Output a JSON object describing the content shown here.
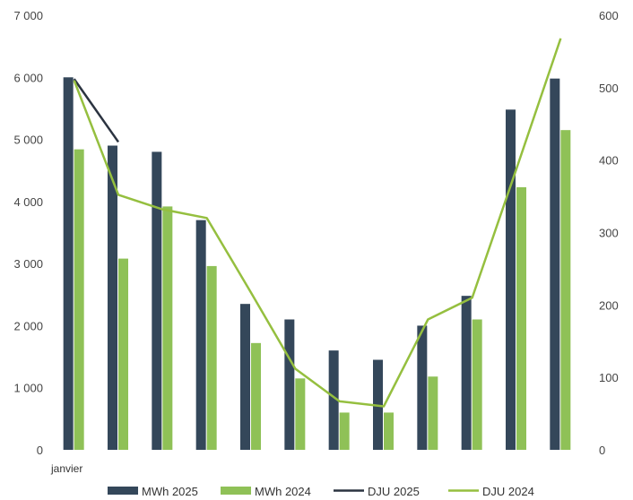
{
  "chart_data": {
    "type": "bar",
    "categories": [
      "janvier",
      "",
      "",
      "",
      "",
      "",
      "",
      "",
      "",
      "",
      "",
      ""
    ],
    "series": [
      {
        "name": "MWh 2025",
        "type": "bar",
        "axis": "left",
        "color": "#34475a",
        "values": [
          6000,
          4900,
          4800,
          3700,
          2350,
          2100,
          1600,
          1450,
          2000,
          2480,
          5480,
          5980
        ]
      },
      {
        "name": "MWh 2024",
        "type": "bar",
        "axis": "left",
        "color": "#8fc157",
        "values": [
          4840,
          3080,
          3920,
          2960,
          1720,
          1150,
          600,
          600,
          1180,
          2100,
          4230,
          5150
        ]
      },
      {
        "name": "DJU 2025",
        "type": "line",
        "axis": "right",
        "color": "#2b3340",
        "values": [
          512,
          425,
          null,
          null,
          null,
          null,
          null,
          null,
          null,
          null,
          null,
          null
        ]
      },
      {
        "name": "DJU 2024",
        "type": "line",
        "axis": "right",
        "color": "#95bf3f",
        "values": [
          510,
          352,
          332,
          320,
          217,
          112,
          67,
          60,
          180,
          210,
          388,
          568
        ]
      }
    ],
    "ylim_left": [
      0,
      7000
    ],
    "ylim_right": [
      0,
      600
    ],
    "yticks_left": [
      "0",
      "1 000",
      "2 000",
      "3 000",
      "4 000",
      "5 000",
      "6 000",
      "7 000"
    ],
    "yticks_right": [
      "0",
      "100",
      "200",
      "300",
      "400",
      "500",
      "600"
    ],
    "title": "",
    "xlabel": "",
    "ylabel": "",
    "grid": false,
    "legend": "bottom"
  }
}
